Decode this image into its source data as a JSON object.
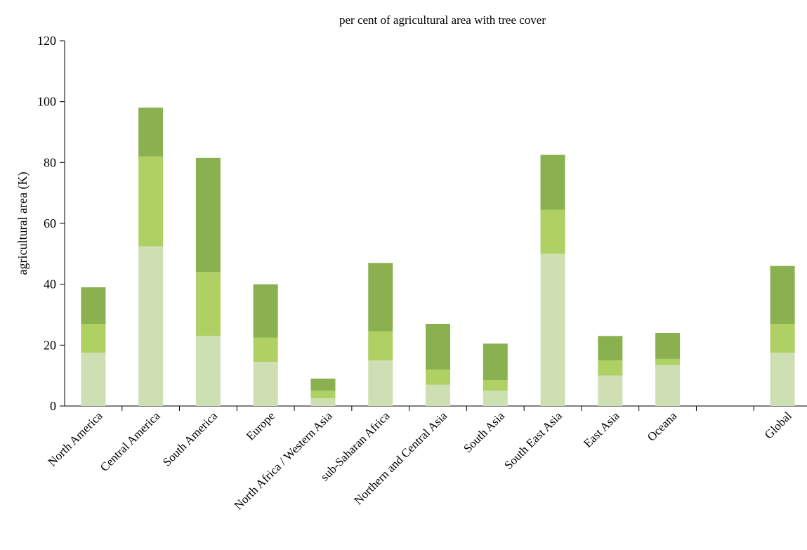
{
  "chart_data": {
    "type": "bar",
    "stacked": true,
    "title": "per cent of agricultural area with tree cover",
    "xlabel": "",
    "ylabel": "agricultural area (K)",
    "ylim": [
      0,
      120
    ],
    "yticks": [
      0,
      20,
      40,
      60,
      80,
      100,
      120
    ],
    "grid": false,
    "categories": [
      "North America",
      "Central America",
      "South America",
      "Europe",
      "North Africa / Western Asia",
      "sub-Saharan Africa",
      "Northern and Central Asia",
      "South Asia",
      "South East Asia",
      "East Asia",
      "Oceana",
      "",
      "Global"
    ],
    "series": [
      {
        "color": "#cfdfb4",
        "values": [
          17.5,
          52.5,
          23,
          14.5,
          2.5,
          15,
          7,
          5,
          50,
          10,
          13.5,
          null,
          17.5
        ]
      },
      {
        "color": "#afd063",
        "values": [
          9.5,
          29.5,
          21,
          8,
          2.5,
          9.5,
          5,
          3.5,
          14.5,
          5,
          2,
          null,
          9.5
        ]
      },
      {
        "color": "#8ab04f",
        "values": [
          12,
          16,
          37.5,
          17.5,
          4,
          22.5,
          15,
          12,
          18,
          8,
          8.5,
          null,
          19
        ]
      }
    ]
  }
}
